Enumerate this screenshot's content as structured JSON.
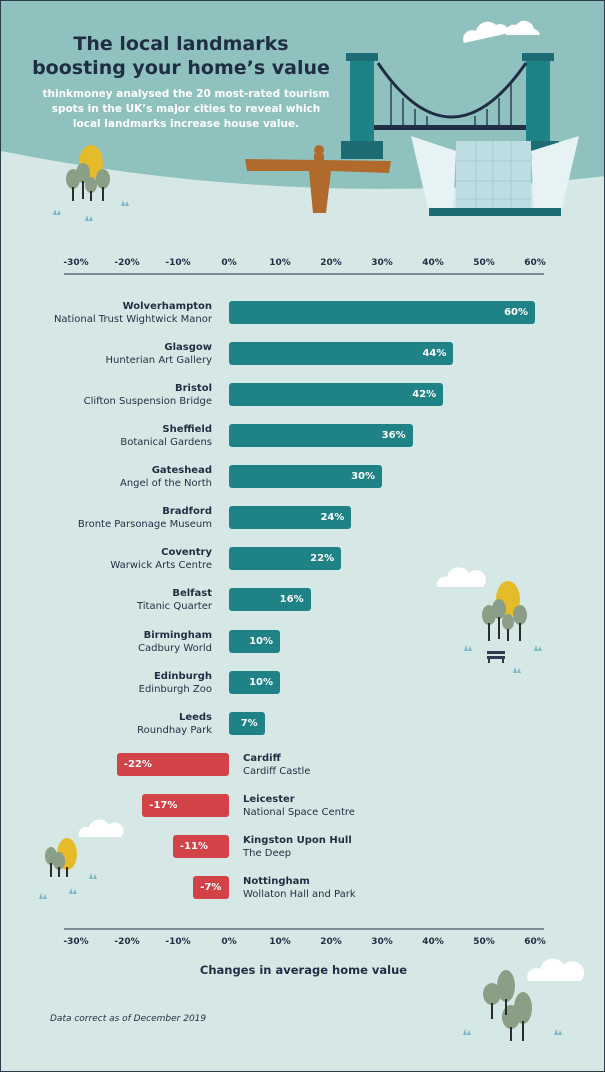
{
  "header": {
    "title_line1": "The local landmarks",
    "title_line2": "boosting your home’s value",
    "subtitle": "thinkmoney analysed the 20 most-rated tourism spots in the UK’s major cities to reveal which local landmarks increase house value."
  },
  "chart_data": {
    "type": "bar",
    "orientation": "horizontal",
    "xlabel": "Changes in average home value",
    "xlim": [
      -30,
      60
    ],
    "xticks": [
      "-30%",
      "-20%",
      "-10%",
      "0%",
      "10%",
      "20%",
      "30%",
      "40%",
      "50%",
      "60%"
    ],
    "tick_values": [
      -30,
      -20,
      -10,
      0,
      10,
      20,
      30,
      40,
      50,
      60
    ],
    "categories": [
      {
        "city": "Wolverhampton",
        "landmark": "National Trust Wightwick Manor",
        "value": 60,
        "label": "60%"
      },
      {
        "city": "Glasgow",
        "landmark": "Hunterian Art Gallery",
        "value": 44,
        "label": "44%"
      },
      {
        "city": "Bristol",
        "landmark": "Clifton Suspension Bridge",
        "value": 42,
        "label": "42%"
      },
      {
        "city": "Sheffield",
        "landmark": "Botanical Gardens",
        "value": 36,
        "label": "36%"
      },
      {
        "city": "Gateshead",
        "landmark": "Angel of the North",
        "value": 30,
        "label": "30%"
      },
      {
        "city": "Bradford",
        "landmark": "Bronte Parsonage Museum",
        "value": 24,
        "label": "24%"
      },
      {
        "city": "Coventry",
        "landmark": "Warwick Arts Centre",
        "value": 22,
        "label": "22%"
      },
      {
        "city": "Belfast",
        "landmark": "Titanic Quarter",
        "value": 16,
        "label": "16%"
      },
      {
        "city": "Birmingham",
        "landmark": "Cadbury World",
        "value": 10,
        "label": "10%"
      },
      {
        "city": "Edinburgh",
        "landmark": "Edinburgh Zoo",
        "value": 10,
        "label": "10%"
      },
      {
        "city": "Leeds",
        "landmark": "Roundhay Park",
        "value": 7,
        "label": "7%"
      },
      {
        "city": "Cardiff",
        "landmark": "Cardiff Castle",
        "value": -22,
        "label": "-22%"
      },
      {
        "city": "Leicester",
        "landmark": "National Space Centre",
        "value": -17,
        "label": "-17%"
      },
      {
        "city": "Kingston Upon Hull",
        "landmark": "The Deep",
        "value": -11,
        "label": "-11%"
      },
      {
        "city": "Nottingham",
        "landmark": "Wollaton Hall and Park",
        "value": -7,
        "label": "-7%"
      }
    ],
    "colors": {
      "positive": "#1e8286",
      "negative": "#d34247"
    }
  },
  "footnote": "Data correct as of December 2019",
  "illustrations": [
    "clifton-suspension-bridge",
    "angel-of-the-north",
    "titanic-belfast",
    "tree",
    "cloud",
    "bench",
    "grass"
  ]
}
